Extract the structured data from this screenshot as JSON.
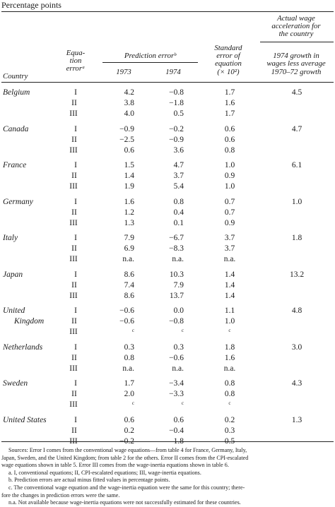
{
  "caption": "Percentage points",
  "headers": {
    "country": "Country",
    "equation_error": [
      "Equa-",
      "tion",
      "errorᵃ"
    ],
    "prediction_error": "Prediction errorᵇ",
    "year_1973": "1973",
    "year_1974": "1974",
    "standard_error": [
      "Standard",
      "error of",
      "equation",
      "(× 10²)"
    ],
    "actual_wage": [
      "Actual wage",
      "acceleration for",
      "the country"
    ],
    "growth": [
      "1974 growth in",
      "wages less average",
      "1970–72 growth"
    ]
  },
  "rows": [
    {
      "country": [
        "Belgium"
      ],
      "eq": [
        "I",
        "II",
        "III"
      ],
      "y1973": [
        "4.2",
        "3.8",
        "4.0"
      ],
      "y1974": [
        "−0.8",
        "−1.8",
        "0.5"
      ],
      "se": [
        "1.7",
        "1.6",
        "1.7"
      ],
      "growth": "4.5"
    },
    {
      "country": [
        "Canada"
      ],
      "eq": [
        "I",
        "II",
        "III"
      ],
      "y1973": [
        "−0.9",
        "−2.5",
        "0.6"
      ],
      "y1974": [
        "−0.2",
        "−0.9",
        "3.6"
      ],
      "se": [
        "0.6",
        "0.6",
        "0.8"
      ],
      "growth": "4.7"
    },
    {
      "country": [
        "France"
      ],
      "eq": [
        "I",
        "II",
        "III"
      ],
      "y1973": [
        "1.5",
        "1.4",
        "1.9"
      ],
      "y1974": [
        "4.7",
        "3.7",
        "5.4"
      ],
      "se": [
        "1.0",
        "0.9",
        "1.0"
      ],
      "growth": "6.1"
    },
    {
      "country": [
        "Germany"
      ],
      "eq": [
        "I",
        "II",
        "III"
      ],
      "y1973": [
        "1.6",
        "1.2",
        "1.3"
      ],
      "y1974": [
        "0.8",
        "0.4",
        "0.1"
      ],
      "se": [
        "0.7",
        "0.7",
        "0.9"
      ],
      "growth": "1.0"
    },
    {
      "country": [
        "Italy"
      ],
      "eq": [
        "I",
        "II",
        "III"
      ],
      "y1973": [
        "7.9",
        "6.9",
        "n.a."
      ],
      "y1974": [
        "−6.7",
        "−8.3",
        "n.a."
      ],
      "se": [
        "3.7",
        "3.7",
        "n.a."
      ],
      "growth": "1.8"
    },
    {
      "country": [
        "Japan"
      ],
      "eq": [
        "I",
        "II",
        "III"
      ],
      "y1973": [
        "8.6",
        "7.4",
        "8.6"
      ],
      "y1974": [
        "10.3",
        "7.9",
        "13.7"
      ],
      "se": [
        "1.4",
        "1.4",
        "1.4"
      ],
      "growth": "13.2"
    },
    {
      "country": [
        "United",
        "Kingdom"
      ],
      "eq": [
        "I",
        "II",
        "III"
      ],
      "y1973": [
        "−0.6",
        "−0.6",
        "ᶜ"
      ],
      "y1974": [
        "0.0",
        "−0.8",
        "ᶜ"
      ],
      "se": [
        "1.1",
        "1.0",
        "ᶜ"
      ],
      "growth": "4.8"
    },
    {
      "country": [
        "Netherlands"
      ],
      "eq": [
        "I",
        "II",
        "III"
      ],
      "y1973": [
        "0.3",
        "0.8",
        "n.a."
      ],
      "y1974": [
        "0.3",
        "−0.6",
        "n.a."
      ],
      "se": [
        "1.8",
        "1.6",
        "n.a."
      ],
      "growth": "3.0"
    },
    {
      "country": [
        "Sweden"
      ],
      "eq": [
        "I",
        "II",
        "III"
      ],
      "y1973": [
        "1.7",
        "2.0",
        "ᶜ"
      ],
      "y1974": [
        "−3.4",
        "−3.3",
        "ᶜ"
      ],
      "se": [
        "0.8",
        "0.8",
        "ᶜ"
      ],
      "growth": "4.3"
    },
    {
      "country": [
        "United States"
      ],
      "eq": [
        "I",
        "II",
        "III"
      ],
      "y1973": [
        "0.6",
        "0.2",
        "−0.2"
      ],
      "y1974": [
        "0.6",
        "−0.4",
        "1.8"
      ],
      "se": [
        "0.2",
        "0.3",
        "0.5"
      ],
      "growth": "1.3"
    }
  ],
  "notes": [
    "Sources: Error I comes from the conventional wage equations—from table 4 for France, Germany, Italy,",
    "Japan, Sweden, and the United Kingdom; from table 2 for the others. Error II comes from the CPI-escalated",
    "wage equations shown in table 5. Error III comes from the wage-inertia equations shown in table 6.",
    "a. I, conventional equations; II, CPI-escalated equations; III, wage-inertia equations.",
    "b. Prediction errors are actual minus fitted values in percentage points.",
    "c. The conventional wage equation and the wage-inertia equation were the same for this country; there-",
    "fore the changes in prediction errors were the same.",
    "n.a. Not available because wage-inertia equations were not successfully estimated for these countries."
  ]
}
